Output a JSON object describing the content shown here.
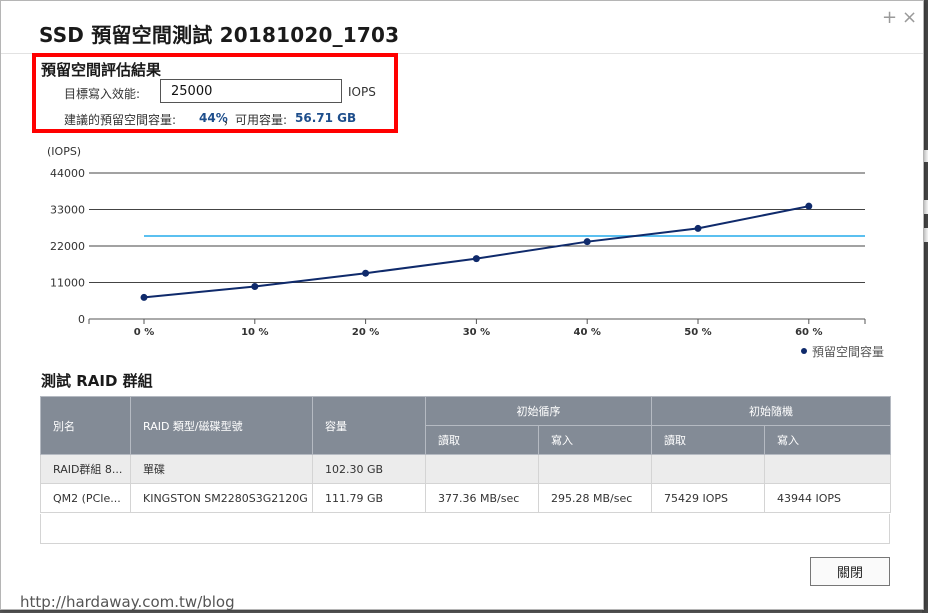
{
  "dialog": {
    "title": "SSD 預留空間測試 20181020_1703",
    "add_icon": "+",
    "close_icon": "×"
  },
  "estimate": {
    "section_title": "預留空間評估結果",
    "target_label": "目標寫入效能:",
    "target_value": "25000",
    "target_unit": "IOPS",
    "suggest_label": "建議的預留空間容量:",
    "suggest_value": "44%",
    "available_label": "，可用容量:",
    "available_value": "56.71 GB"
  },
  "chart_data": {
    "type": "line",
    "ylabel": "(IOPS)",
    "xlabel": "",
    "yticks": [
      "44000",
      "33000",
      "22000",
      "11000",
      "0"
    ],
    "ylim": [
      0,
      44000
    ],
    "categories": [
      "0 %",
      "10 %",
      "20 %",
      "30 %",
      "40 %",
      "50 %",
      "60 %"
    ],
    "series": [
      {
        "name": "預留空間容量",
        "values": [
          6500,
          9800,
          13800,
          18200,
          23300,
          27300,
          34000
        ],
        "color": "#0f2a6b"
      }
    ],
    "target_line": {
      "value": 25000,
      "color": "#5bc0f0"
    },
    "legend_position": "bottom-right",
    "grid": true
  },
  "raid_section": {
    "title": "測試 RAID 群組",
    "headers": {
      "alias": "別名",
      "type": "RAID 類型/磁碟型號",
      "capacity": "容量",
      "seq_group": "初始循序",
      "rand_group": "初始隨機",
      "read": "讀取",
      "write": "寫入"
    },
    "rows": [
      [
        "RAID群組 8...",
        "單碟",
        "102.30 GB",
        "",
        "",
        "",
        ""
      ],
      [
        "QM2 (PCIe...",
        "KINGSTON SM2280S3G2120G",
        "111.79 GB",
        "377.36 MB/sec",
        "295.28 MB/sec",
        "75429 IOPS",
        "43944 IOPS"
      ]
    ]
  },
  "footer": {
    "close_label": "關閉",
    "watermark": "http://hardaway.com.tw/blog"
  }
}
